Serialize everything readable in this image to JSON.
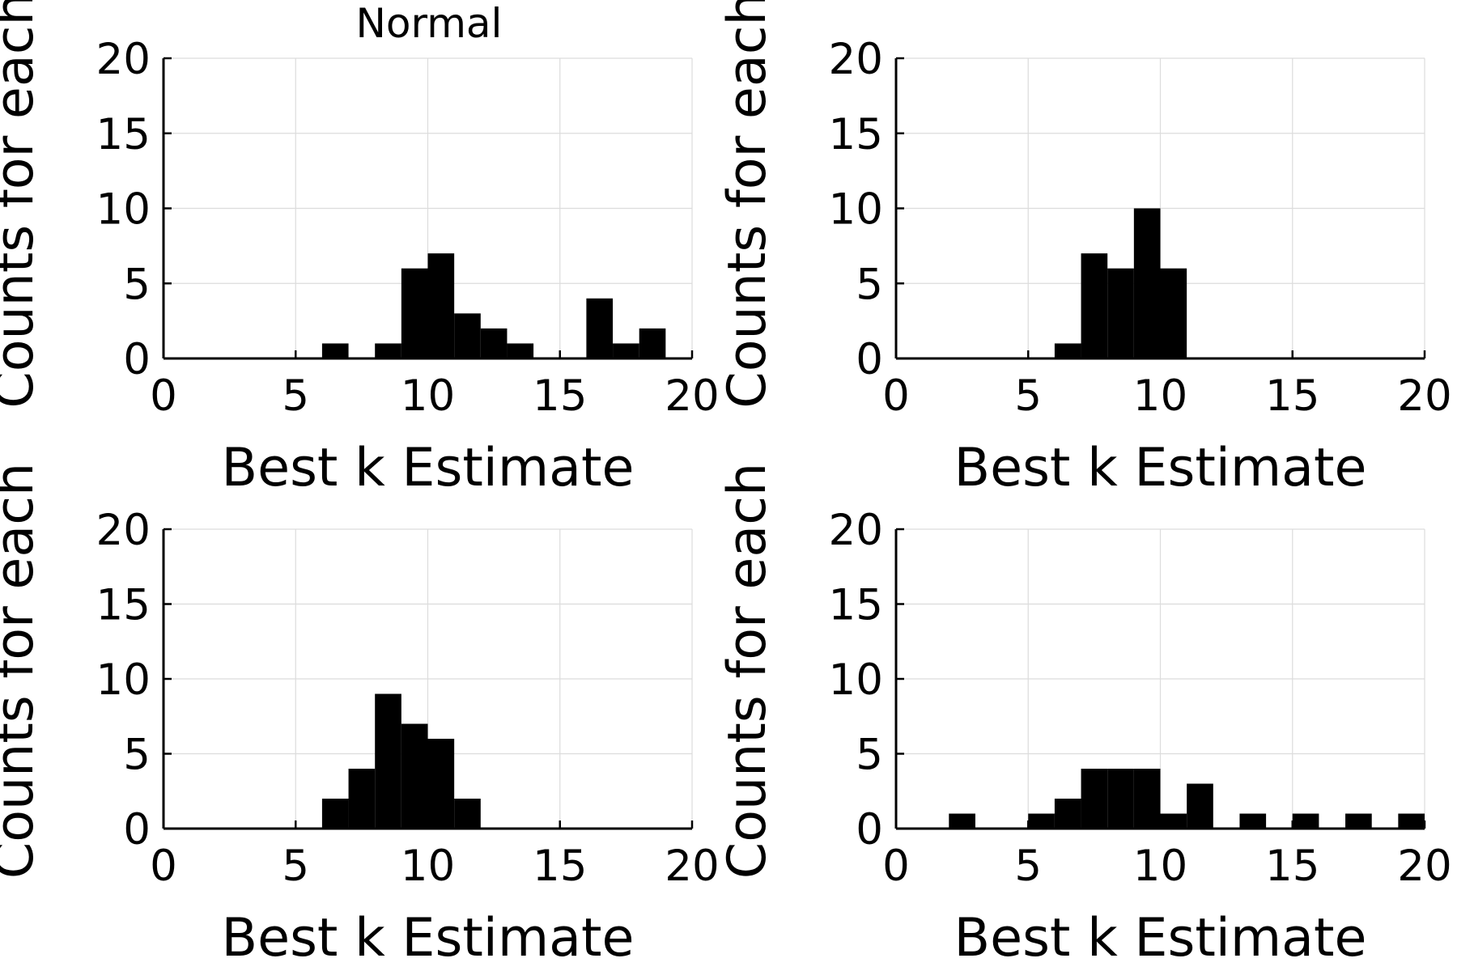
{
  "colors": {
    "bar": "#000000",
    "grid": "#dcdcdc",
    "axis": "#000000",
    "background": "#ffffff"
  },
  "chart_data": [
    {
      "type": "bar",
      "title": "Normal",
      "xlabel": "Best k Estimate",
      "ylabel": "Counts for each",
      "xlim": [
        0,
        20
      ],
      "ylim": [
        0,
        20
      ],
      "xticks": [
        "0",
        "5",
        "10",
        "15",
        "20"
      ],
      "yticks": [
        "0",
        "5",
        "10",
        "15",
        "20"
      ],
      "grid": true,
      "bin_width": 1,
      "bins": [
        [
          6,
          1
        ],
        [
          8,
          1
        ],
        [
          9,
          6
        ],
        [
          10,
          7
        ],
        [
          11,
          3
        ],
        [
          12,
          2
        ],
        [
          13,
          1
        ],
        [
          16,
          4
        ],
        [
          17,
          1
        ],
        [
          18,
          2
        ]
      ]
    },
    {
      "type": "bar",
      "title": "",
      "xlabel": "Best k Estimate",
      "ylabel": "Counts for each",
      "xlim": [
        0,
        20
      ],
      "ylim": [
        0,
        20
      ],
      "xticks": [
        "0",
        "5",
        "10",
        "15",
        "20"
      ],
      "yticks": [
        "0",
        "5",
        "10",
        "15",
        "20"
      ],
      "grid": true,
      "bin_width": 1,
      "bins": [
        [
          6,
          1
        ],
        [
          7,
          7
        ],
        [
          8,
          6
        ],
        [
          9,
          10
        ],
        [
          10,
          6
        ]
      ]
    },
    {
      "type": "bar",
      "title": "",
      "xlabel": "Best k Estimate",
      "ylabel": "Counts for each",
      "xlim": [
        0,
        20
      ],
      "ylim": [
        0,
        20
      ],
      "xticks": [
        "0",
        "5",
        "10",
        "15",
        "20"
      ],
      "yticks": [
        "0",
        "5",
        "10",
        "15",
        "20"
      ],
      "grid": true,
      "bin_width": 1,
      "bins": [
        [
          6,
          2
        ],
        [
          7,
          4
        ],
        [
          8,
          9
        ],
        [
          9,
          7
        ],
        [
          10,
          6
        ],
        [
          11,
          2
        ]
      ]
    },
    {
      "type": "bar",
      "title": "",
      "xlabel": "Best k Estimate",
      "ylabel": "Counts for each",
      "xlim": [
        0,
        20
      ],
      "ylim": [
        0,
        20
      ],
      "xticks": [
        "0",
        "5",
        "10",
        "15",
        "20"
      ],
      "yticks": [
        "0",
        "5",
        "10",
        "15",
        "20"
      ],
      "grid": true,
      "bin_width": 1,
      "bins": [
        [
          2,
          1
        ],
        [
          5,
          1
        ],
        [
          6,
          2
        ],
        [
          7,
          4
        ],
        [
          8,
          4
        ],
        [
          9,
          4
        ],
        [
          10,
          1
        ],
        [
          11,
          3
        ],
        [
          13,
          1
        ],
        [
          15,
          1
        ],
        [
          17,
          1
        ],
        [
          19,
          1
        ]
      ]
    }
  ]
}
